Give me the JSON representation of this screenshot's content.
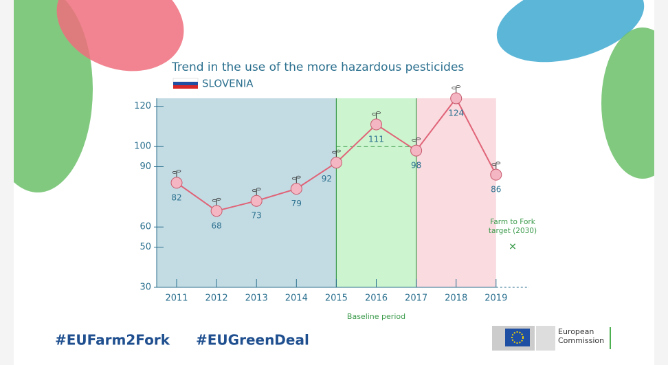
{
  "chart_data": {
    "type": "line",
    "title": "Trend in the use of the more hazardous pesticides",
    "subtitle": "SLOVENIA",
    "categories": [
      "2011",
      "2012",
      "2013",
      "2014",
      "2015",
      "2016",
      "2017",
      "2018",
      "2019"
    ],
    "series": [
      {
        "name": "Slovenia",
        "color": "#e06377",
        "values": [
          82,
          68,
          73,
          79,
          92,
          111,
          98,
          124,
          86
        ]
      }
    ],
    "ylim": [
      30,
      124
    ],
    "yticks": [
      30,
      50,
      60,
      90,
      100,
      120
    ],
    "baseline": {
      "label": "Baseline period",
      "from": "2015",
      "to": "2017",
      "value": 100
    },
    "target": {
      "label": "Farm to Fork target (2030)",
      "value": 50
    },
    "footer": {
      "hashtags": [
        "#EUFarm2Fork",
        "#EUGreenDeal"
      ],
      "logo": "European Commission"
    }
  }
}
